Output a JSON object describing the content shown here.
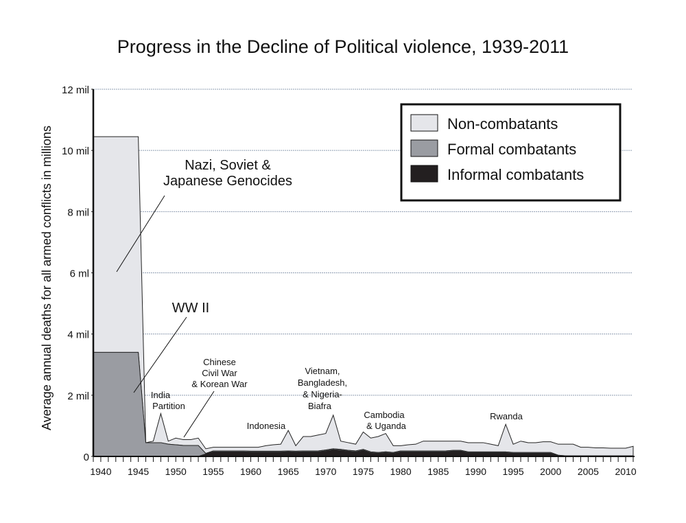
{
  "chart_data": {
    "type": "area",
    "stacked": true,
    "title": "Progress in the Decline of Political violence, 1939-2011",
    "ylabel": "Average annual deaths for all armed conflicts in millions",
    "xlabel": "",
    "xlim": [
      1939,
      2011
    ],
    "ylim": [
      0,
      12
    ],
    "grid": true,
    "legend_position": "top-right",
    "y_ticks": [
      {
        "value": 0,
        "label": "0"
      },
      {
        "value": 2,
        "label": "2 mil"
      },
      {
        "value": 4,
        "label": "4 mil"
      },
      {
        "value": 6,
        "label": "6 ml"
      },
      {
        "value": 8,
        "label": "8 mil"
      },
      {
        "value": 10,
        "label": "10 mil"
      },
      {
        "value": 12,
        "label": "12 mil"
      }
    ],
    "x_ticks": [
      1940,
      1945,
      1950,
      1955,
      1960,
      1965,
      1970,
      1975,
      1980,
      1985,
      1990,
      1995,
      2000,
      2005,
      2010
    ],
    "x": [
      1939,
      1940,
      1941,
      1942,
      1943,
      1944,
      1945,
      1946,
      1947,
      1948,
      1949,
      1950,
      1951,
      1952,
      1953,
      1954,
      1955,
      1956,
      1957,
      1958,
      1959,
      1960,
      1961,
      1962,
      1963,
      1964,
      1965,
      1966,
      1967,
      1968,
      1969,
      1970,
      1971,
      1972,
      1973,
      1974,
      1975,
      1976,
      1977,
      1978,
      1979,
      1980,
      1981,
      1982,
      1983,
      1984,
      1985,
      1986,
      1987,
      1988,
      1989,
      1990,
      1991,
      1992,
      1993,
      1994,
      1995,
      1996,
      1997,
      1998,
      1999,
      2000,
      2001,
      2002,
      2003,
      2004,
      2005,
      2006,
      2007,
      2008,
      2009,
      2010,
      2011
    ],
    "series": [
      {
        "name": "Informal combatants",
        "color": "#231f20",
        "values": [
          0,
          0,
          0,
          0,
          0,
          0,
          0,
          0,
          0,
          0,
          0,
          0,
          0,
          0,
          0,
          0.08,
          0.15,
          0.15,
          0.15,
          0.15,
          0.15,
          0.14,
          0.14,
          0.14,
          0.14,
          0.14,
          0.15,
          0.14,
          0.15,
          0.15,
          0.15,
          0.18,
          0.22,
          0.2,
          0.17,
          0.15,
          0.2,
          0.12,
          0.1,
          0.12,
          0.1,
          0.15,
          0.15,
          0.15,
          0.15,
          0.15,
          0.15,
          0.15,
          0.17,
          0.17,
          0.12,
          0.12,
          0.12,
          0.12,
          0.12,
          0.12,
          0.1,
          0.1,
          0.1,
          0.1,
          0.1,
          0.1,
          0.02,
          0,
          0,
          0,
          0,
          0,
          0,
          0,
          0,
          0,
          0
        ]
      },
      {
        "name": "Formal combatants",
        "color": "#9a9ca2",
        "values": [
          3.4,
          3.4,
          3.4,
          3.4,
          3.4,
          3.4,
          3.4,
          0.45,
          0.45,
          0.45,
          0.4,
          0.38,
          0.36,
          0.36,
          0.36,
          0.02,
          0.03,
          0.03,
          0.03,
          0.03,
          0.03,
          0.03,
          0.03,
          0.03,
          0.03,
          0.03,
          0.03,
          0.03,
          0.03,
          0.03,
          0.03,
          0.03,
          0.03,
          0.03,
          0.03,
          0.03,
          0.03,
          0.03,
          0.03,
          0.03,
          0.03,
          0.03,
          0.03,
          0.03,
          0.03,
          0.03,
          0.03,
          0.03,
          0.03,
          0.03,
          0.03,
          0.03,
          0.03,
          0.03,
          0.03,
          0.03,
          0.03,
          0.03,
          0.03,
          0.03,
          0.03,
          0.03,
          0.02,
          0.02,
          0.02,
          0.02,
          0.02,
          0.02,
          0.02,
          0.02,
          0.02,
          0.02,
          0.02
        ]
      },
      {
        "name": "Non-combatants",
        "color": "#e5e6ea",
        "values": [
          7.05,
          7.05,
          7.05,
          7.05,
          7.05,
          7.05,
          7.05,
          0,
          0.05,
          0.95,
          0.1,
          0.22,
          0.19,
          0.19,
          0.24,
          0.15,
          0.12,
          0.12,
          0.12,
          0.12,
          0.12,
          0.13,
          0.13,
          0.18,
          0.21,
          0.23,
          0.67,
          0.18,
          0.47,
          0.47,
          0.52,
          0.54,
          1.1,
          0.27,
          0.25,
          0.22,
          0.57,
          0.45,
          0.52,
          0.6,
          0.22,
          0.17,
          0.2,
          0.22,
          0.32,
          0.32,
          0.32,
          0.32,
          0.3,
          0.3,
          0.3,
          0.3,
          0.3,
          0.25,
          0.2,
          0.9,
          0.27,
          0.37,
          0.32,
          0.32,
          0.35,
          0.35,
          0.36,
          0.38,
          0.38,
          0.28,
          0.28,
          0.26,
          0.26,
          0.25,
          0.25,
          0.25,
          0.31
        ]
      }
    ],
    "legend": [
      "Non-combatants",
      "Formal combatants",
      "Informal combatants"
    ],
    "annotations": {
      "genocide": [
        "Nazi, Soviet  &",
        "Japanese Genocides"
      ],
      "ww2": "WW II",
      "india": [
        "India",
        "Partition"
      ],
      "china": [
        "Chinese",
        "Civil War",
        "& Korean War"
      ],
      "indonesia": "Indonesia",
      "vietnam": [
        "Vietnam,",
        "Bangladesh,",
        "& Nigeria-",
        "Biafra"
      ],
      "cambodia": [
        "Cambodia",
        "& Uganda"
      ],
      "rwanda": "Rwanda"
    }
  }
}
